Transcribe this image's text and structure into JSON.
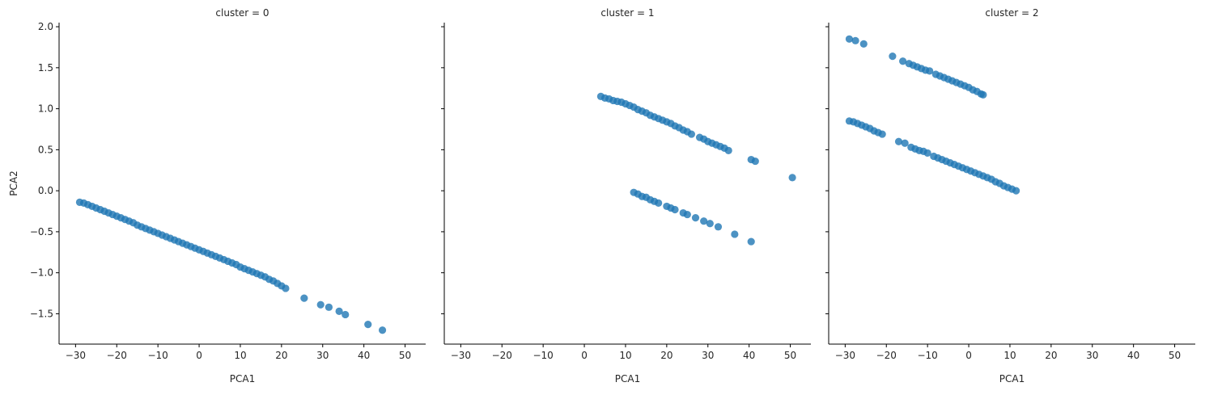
{
  "chart_data": [
    {
      "type": "scatter",
      "title": "cluster = 0",
      "xlabel": "PCA1",
      "ylabel": "PCA2",
      "xlim": [
        -34,
        55
      ],
      "ylim": [
        -1.87,
        2.05
      ],
      "xticks": [
        "−30",
        "−20",
        "−10",
        "0",
        "10",
        "20",
        "30",
        "40",
        "50"
      ],
      "yticks": [
        "−1.5",
        "−1.0",
        "−0.5",
        "0.0",
        "0.5",
        "1.0",
        "1.5",
        "2.0"
      ],
      "color": "#1f77b4",
      "points": [
        [
          -29,
          -0.14
        ],
        [
          -28,
          -0.15
        ],
        [
          -27,
          -0.17
        ],
        [
          -26,
          -0.19
        ],
        [
          -25,
          -0.21
        ],
        [
          -24,
          -0.23
        ],
        [
          -23,
          -0.25
        ],
        [
          -22,
          -0.27
        ],
        [
          -21,
          -0.29
        ],
        [
          -20,
          -0.31
        ],
        [
          -19,
          -0.33
        ],
        [
          -18,
          -0.35
        ],
        [
          -17,
          -0.37
        ],
        [
          -16,
          -0.39
        ],
        [
          -15,
          -0.42
        ],
        [
          -14,
          -0.44
        ],
        [
          -13,
          -0.46
        ],
        [
          -12,
          -0.48
        ],
        [
          -11,
          -0.5
        ],
        [
          -10,
          -0.52
        ],
        [
          -9,
          -0.54
        ],
        [
          -8,
          -0.56
        ],
        [
          -7,
          -0.58
        ],
        [
          -6,
          -0.6
        ],
        [
          -5,
          -0.62
        ],
        [
          -4,
          -0.64
        ],
        [
          -3,
          -0.66
        ],
        [
          -2,
          -0.68
        ],
        [
          -1,
          -0.7
        ],
        [
          0,
          -0.72
        ],
        [
          1,
          -0.74
        ],
        [
          2,
          -0.76
        ],
        [
          3,
          -0.78
        ],
        [
          4,
          -0.8
        ],
        [
          5,
          -0.82
        ],
        [
          6,
          -0.84
        ],
        [
          7,
          -0.86
        ],
        [
          8,
          -0.88
        ],
        [
          9,
          -0.9
        ],
        [
          10,
          -0.93
        ],
        [
          11,
          -0.95
        ],
        [
          12,
          -0.97
        ],
        [
          13,
          -0.99
        ],
        [
          14,
          -1.01
        ],
        [
          15,
          -1.03
        ],
        [
          16,
          -1.05
        ],
        [
          17,
          -1.08
        ],
        [
          18,
          -1.1
        ],
        [
          19,
          -1.13
        ],
        [
          20,
          -1.16
        ],
        [
          21,
          -1.19
        ],
        [
          25.5,
          -1.31
        ],
        [
          29.5,
          -1.39
        ],
        [
          31.5,
          -1.42
        ],
        [
          34,
          -1.47
        ],
        [
          35.5,
          -1.51
        ],
        [
          41,
          -1.63
        ],
        [
          44.5,
          -1.7
        ]
      ]
    },
    {
      "type": "scatter",
      "title": "cluster = 1",
      "xlabel": "PCA1",
      "ylabel": "",
      "xlim": [
        -34,
        55
      ],
      "ylim": [
        -1.87,
        2.05
      ],
      "xticks": [
        "−30",
        "−20",
        "−10",
        "0",
        "10",
        "20",
        "30",
        "40",
        "50"
      ],
      "yticks": [],
      "color": "#1f77b4",
      "points": [
        [
          4,
          1.15
        ],
        [
          5,
          1.13
        ],
        [
          6,
          1.12
        ],
        [
          7,
          1.1
        ],
        [
          8,
          1.09
        ],
        [
          9,
          1.08
        ],
        [
          10,
          1.06
        ],
        [
          11,
          1.04
        ],
        [
          12,
          1.02
        ],
        [
          13,
          0.99
        ],
        [
          14,
          0.97
        ],
        [
          15,
          0.95
        ],
        [
          16,
          0.92
        ],
        [
          17,
          0.9
        ],
        [
          18,
          0.88
        ],
        [
          19,
          0.86
        ],
        [
          20,
          0.84
        ],
        [
          21,
          0.82
        ],
        [
          22,
          0.79
        ],
        [
          23,
          0.77
        ],
        [
          24,
          0.74
        ],
        [
          25,
          0.72
        ],
        [
          26,
          0.69
        ],
        [
          28,
          0.65
        ],
        [
          29,
          0.63
        ],
        [
          30,
          0.6
        ],
        [
          31,
          0.58
        ],
        [
          32,
          0.56
        ],
        [
          33,
          0.54
        ],
        [
          34,
          0.52
        ],
        [
          35,
          0.49
        ],
        [
          40.5,
          0.38
        ],
        [
          41.5,
          0.36
        ],
        [
          50.5,
          0.16
        ],
        [
          12,
          -0.02
        ],
        [
          13,
          -0.04
        ],
        [
          14,
          -0.07
        ],
        [
          15,
          -0.08
        ],
        [
          16,
          -0.11
        ],
        [
          17,
          -0.13
        ],
        [
          18,
          -0.15
        ],
        [
          20,
          -0.19
        ],
        [
          21,
          -0.21
        ],
        [
          22,
          -0.23
        ],
        [
          24,
          -0.27
        ],
        [
          25,
          -0.29
        ],
        [
          27,
          -0.33
        ],
        [
          29,
          -0.37
        ],
        [
          30.5,
          -0.4
        ],
        [
          32.5,
          -0.44
        ],
        [
          36.5,
          -0.53
        ],
        [
          40.5,
          -0.62
        ]
      ]
    },
    {
      "type": "scatter",
      "title": "cluster = 2",
      "xlabel": "PCA1",
      "ylabel": "",
      "xlim": [
        -34,
        55
      ],
      "ylim": [
        -1.87,
        2.05
      ],
      "xticks": [
        "−30",
        "−20",
        "−10",
        "0",
        "10",
        "20",
        "30",
        "40",
        "50"
      ],
      "yticks": [],
      "color": "#1f77b4",
      "points": [
        [
          -29,
          1.85
        ],
        [
          -27.5,
          1.83
        ],
        [
          -25.5,
          1.79
        ],
        [
          -18.5,
          1.64
        ],
        [
          -16,
          1.58
        ],
        [
          -14.5,
          1.55
        ],
        [
          -13.5,
          1.53
        ],
        [
          -12.5,
          1.51
        ],
        [
          -11.5,
          1.49
        ],
        [
          -10.5,
          1.47
        ],
        [
          -9.5,
          1.46
        ],
        [
          -8,
          1.42
        ],
        [
          -7,
          1.4
        ],
        [
          -6,
          1.38
        ],
        [
          -5,
          1.36
        ],
        [
          -4,
          1.34
        ],
        [
          -3,
          1.32
        ],
        [
          -2,
          1.3
        ],
        [
          -1,
          1.28
        ],
        [
          0,
          1.26
        ],
        [
          1,
          1.23
        ],
        [
          2,
          1.21
        ],
        [
          3,
          1.18
        ],
        [
          3.5,
          1.17
        ],
        [
          -29,
          0.85
        ],
        [
          -28,
          0.84
        ],
        [
          -27,
          0.82
        ],
        [
          -26,
          0.8
        ],
        [
          -25,
          0.78
        ],
        [
          -24,
          0.76
        ],
        [
          -23,
          0.73
        ],
        [
          -22,
          0.71
        ],
        [
          -21,
          0.69
        ],
        [
          -17,
          0.6
        ],
        [
          -15.5,
          0.58
        ],
        [
          -14,
          0.53
        ],
        [
          -13,
          0.51
        ],
        [
          -12,
          0.49
        ],
        [
          -11,
          0.48
        ],
        [
          -10,
          0.46
        ],
        [
          -8.5,
          0.42
        ],
        [
          -7.5,
          0.4
        ],
        [
          -6.5,
          0.38
        ],
        [
          -5.5,
          0.36
        ],
        [
          -4.5,
          0.34
        ],
        [
          -3.5,
          0.32
        ],
        [
          -2.5,
          0.3
        ],
        [
          -1.5,
          0.28
        ],
        [
          -0.5,
          0.26
        ],
        [
          0.5,
          0.24
        ],
        [
          1.5,
          0.22
        ],
        [
          2.5,
          0.2
        ],
        [
          3.5,
          0.18
        ],
        [
          4.5,
          0.16
        ],
        [
          5.5,
          0.14
        ],
        [
          6.5,
          0.11
        ],
        [
          7.5,
          0.09
        ],
        [
          8.5,
          0.06
        ],
        [
          9.5,
          0.04
        ],
        [
          10.5,
          0.02
        ],
        [
          11.5,
          0.0
        ]
      ]
    }
  ]
}
